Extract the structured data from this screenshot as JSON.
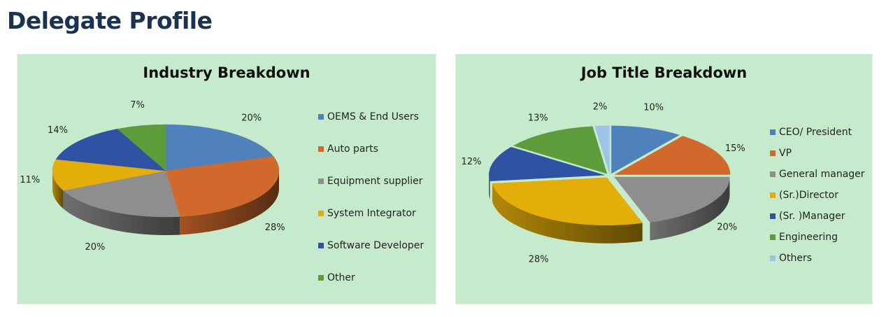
{
  "page": {
    "title": "Delegate Profile"
  },
  "chart_data": [
    {
      "type": "pie",
      "title": "Industry Breakdown",
      "categories": [
        "OEMS & End Users",
        "Auto parts",
        "Equipment supplier",
        "System Integrator",
        "Software Developer",
        "Other"
      ],
      "values": [
        20,
        28,
        20,
        11,
        14,
        7
      ],
      "value_labels": [
        "20%",
        "28%",
        "20%",
        "11%",
        "14%",
        "7%"
      ],
      "colors": [
        "#4f81bd",
        "#d0692b",
        "#8e8e8e",
        "#e3ad0a",
        "#2f52a2",
        "#5e9b3a"
      ],
      "exploded": [],
      "legend": "right",
      "style": "3d"
    },
    {
      "type": "pie",
      "title": "Job Title Breakdown",
      "categories": [
        "CEO/ President",
        "VP",
        "General manager",
        "(Sr.)Director",
        "(Sr. )Manager",
        "Engineering",
        "Others"
      ],
      "values": [
        10,
        15,
        20,
        28,
        12,
        13,
        2
      ],
      "value_labels": [
        "10%",
        "15%",
        "20%",
        "28%",
        "12%",
        "13%",
        "2%"
      ],
      "colors": [
        "#4f81bd",
        "#d0692b",
        "#8e8e8e",
        "#e3ad0a",
        "#2f52a2",
        "#5e9b3a",
        "#9dc3e6"
      ],
      "exploded": [
        0,
        1,
        2,
        3,
        4,
        5,
        6
      ],
      "legend": "right",
      "style": "3d"
    }
  ]
}
